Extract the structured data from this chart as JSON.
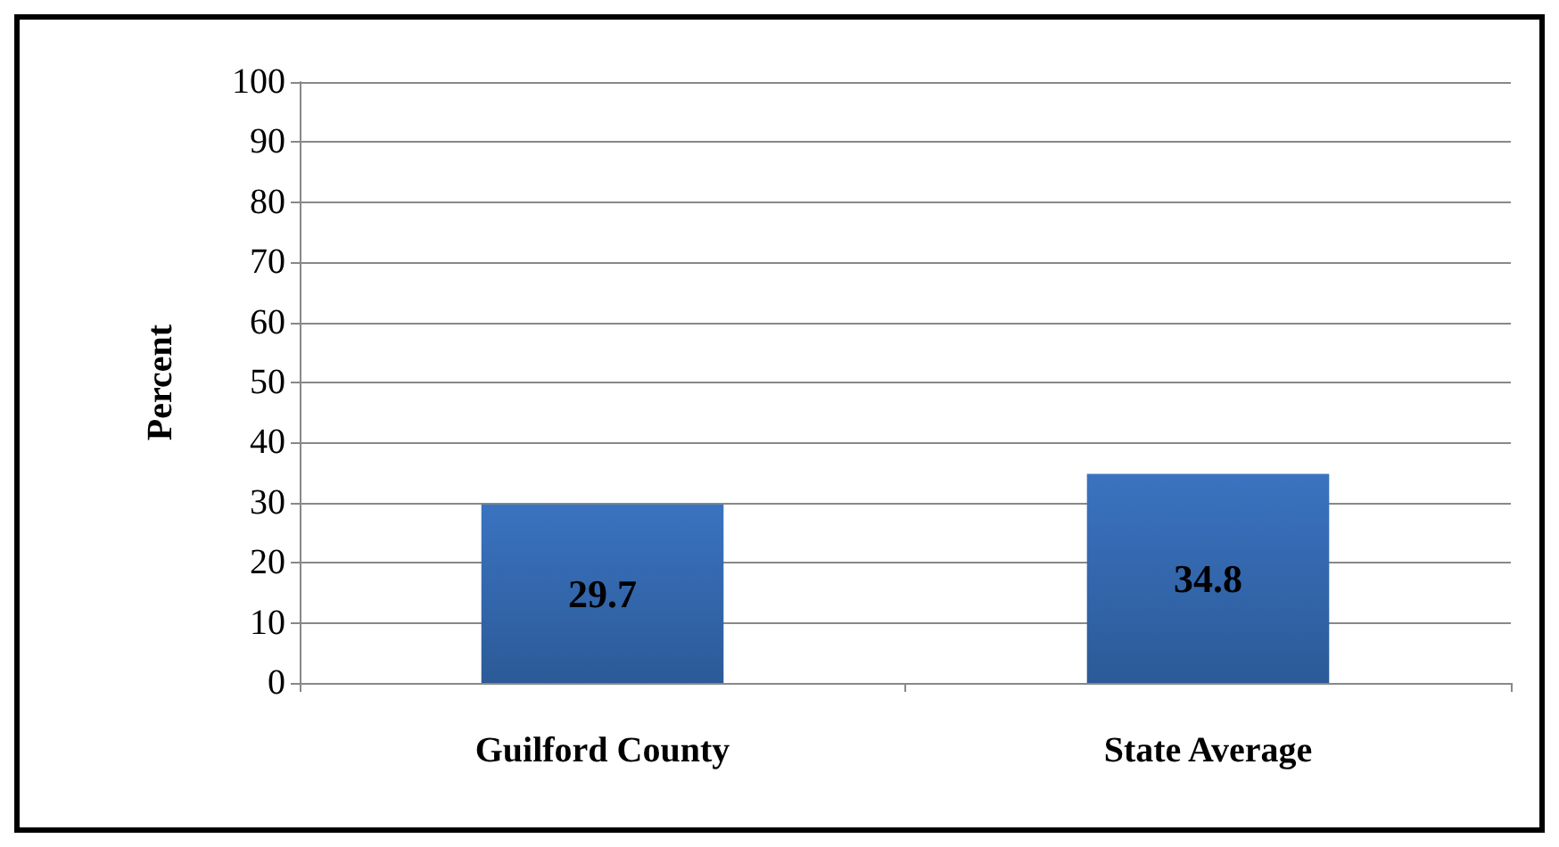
{
  "chart_data": {
    "type": "bar",
    "ylabel": "Percent",
    "categories": [
      "Guilford County",
      "State Average"
    ],
    "values": [
      29.7,
      34.8
    ],
    "color": "#3a73c0",
    "ylim": [
      0,
      100
    ],
    "yticks": [
      0,
      10,
      20,
      30,
      40,
      50,
      60,
      70,
      80,
      90,
      100
    ],
    "grid": "y",
    "data_labels": true
  }
}
